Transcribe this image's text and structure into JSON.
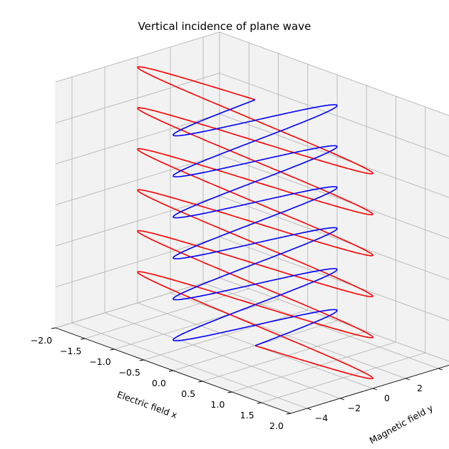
{
  "chart_data": {
    "type": "line3d",
    "title": "Vertical incidence of plane wave",
    "xlabel": "Electric field x",
    "ylabel": "Magnetic field y",
    "zlabel": "",
    "xlim": [
      -2.0,
      2.0
    ],
    "ylim": [
      -5.0,
      5.0
    ],
    "zlim": [
      0,
      6
    ],
    "xticks": [
      "−2.0",
      "−1.5",
      "−1.0",
      "−0.5",
      "0.0",
      "0.5",
      "1.0",
      "1.5",
      "2.0"
    ],
    "yticks": [
      "−4",
      "−2",
      "0",
      "2",
      "4"
    ],
    "zticks": [
      "0",
      "1",
      "2",
      "3",
      "4",
      "5",
      "6"
    ],
    "grid": true,
    "pane_color": "#f2f2f2",
    "series": [
      {
        "color": "#ff0000",
        "description": "red curve, oscillates in x-z plane",
        "z_start": 0,
        "z_end": 6,
        "cycles": 6,
        "x_amplitude": 2.0,
        "y_amplitude": 0.0
      },
      {
        "color": "#0000ff",
        "description": "blue curve, oscillates in y-z plane",
        "z_start": 0,
        "z_end": 6,
        "cycles": 6,
        "x_amplitude": 0.0,
        "y_amplitude": 5.0
      }
    ]
  }
}
